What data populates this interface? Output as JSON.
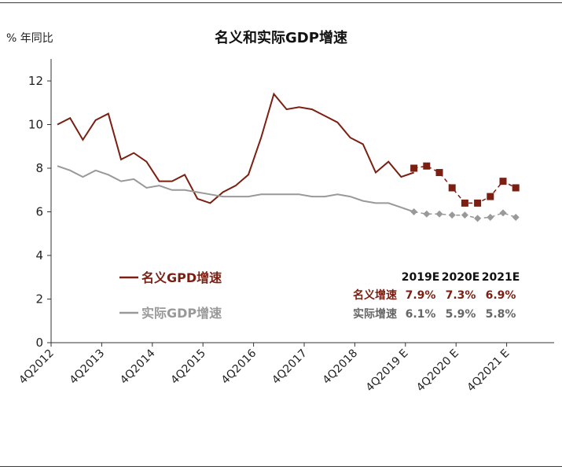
{
  "chart_data": {
    "type": "line",
    "title": "名义和实际GDP增速",
    "ylabel": "% 年同比",
    "ylim": [
      0,
      12
    ],
    "yticks": [
      0,
      2,
      4,
      6,
      8,
      10,
      12
    ],
    "xtick_labels": [
      "4Q2012",
      "4Q2013",
      "4Q2014",
      "4Q2015",
      "4Q2016",
      "4Q2017",
      "4Q2018",
      "4Q2019 E",
      "4Q2020 E",
      "4Q2021 E"
    ],
    "grid": false,
    "series": [
      {
        "name": "名义GPD增速",
        "color": "#7b1f12",
        "style": "solid",
        "values": [
          10.0,
          10.3,
          9.3,
          10.2,
          10.5,
          8.4,
          8.7,
          8.3,
          7.4,
          7.4,
          7.7,
          6.6,
          6.4,
          6.9,
          7.2,
          7.7,
          9.4,
          11.4,
          10.7,
          10.8,
          10.7,
          10.4,
          10.1,
          9.4,
          9.1,
          7.8,
          8.3,
          7.6,
          7.8
        ]
      },
      {
        "name": "名义GPD增速 预测",
        "color": "#7b1f12",
        "style": "dashed-square",
        "start_index": 28,
        "values": [
          8.0,
          8.1,
          7.8,
          7.1,
          6.4,
          6.4,
          6.7,
          7.4,
          7.1
        ]
      },
      {
        "name": "实际GDP增速",
        "color": "#999999",
        "style": "solid",
        "values": [
          8.1,
          7.9,
          7.6,
          7.9,
          7.7,
          7.4,
          7.5,
          7.1,
          7.2,
          7.0,
          7.0,
          6.9,
          6.8,
          6.7,
          6.7,
          6.7,
          6.8,
          6.8,
          6.8,
          6.8,
          6.7,
          6.7,
          6.8,
          6.7,
          6.5,
          6.4,
          6.4,
          6.2,
          6.0
        ]
      },
      {
        "name": "实际GDP增速 预测",
        "color": "#999999",
        "style": "dashed-diamond",
        "start_index": 28,
        "values": [
          6.0,
          5.9,
          5.9,
          5.85,
          5.85,
          5.7,
          5.75,
          5.95,
          5.75
        ]
      }
    ]
  },
  "legend": [
    {
      "label": "名义GPD增速",
      "color": "#7b1f12"
    },
    {
      "label": "实际GDP增速",
      "color": "#999999"
    }
  ],
  "forecast_table": {
    "headers": [
      "2019E",
      "2020E",
      "2021E"
    ],
    "rows": [
      {
        "label": "名义增速",
        "values": [
          "7.9%",
          "7.3%",
          "6.9%"
        ],
        "color": "#7b1f12"
      },
      {
        "label": "实际增速",
        "values": [
          "6.1%",
          "5.9%",
          "5.8%"
        ],
        "color": "#666666"
      }
    ]
  }
}
